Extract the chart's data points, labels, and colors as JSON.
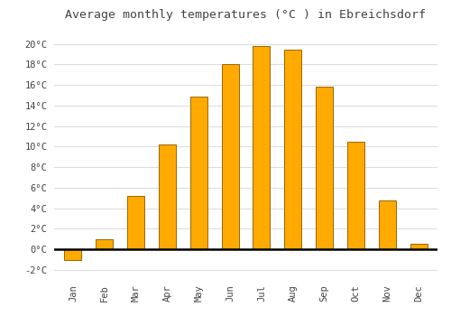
{
  "months": [
    "Jan",
    "Feb",
    "Mar",
    "Apr",
    "May",
    "Jun",
    "Jul",
    "Aug",
    "Sep",
    "Oct",
    "Nov",
    "Dec"
  ],
  "temperatures": [
    -1.0,
    1.0,
    5.2,
    10.2,
    14.9,
    18.0,
    19.8,
    19.4,
    15.8,
    10.5,
    4.8,
    0.5
  ],
  "bar_color": "#FFAA00",
  "bar_edge_color": "#996600",
  "title": "Average monthly temperatures (°C ) in Ebreichsdorf",
  "title_fontsize": 9.5,
  "ylabel_ticks": [
    -2,
    0,
    2,
    4,
    6,
    8,
    10,
    12,
    14,
    16,
    18,
    20
  ],
  "ylim": [
    -2.8,
    21.5
  ],
  "background_color": "#FFFFFF",
  "grid_color": "#DDDDDD",
  "font_color": "#444444",
  "tick_fontsize": 7.5,
  "bar_width": 0.55
}
